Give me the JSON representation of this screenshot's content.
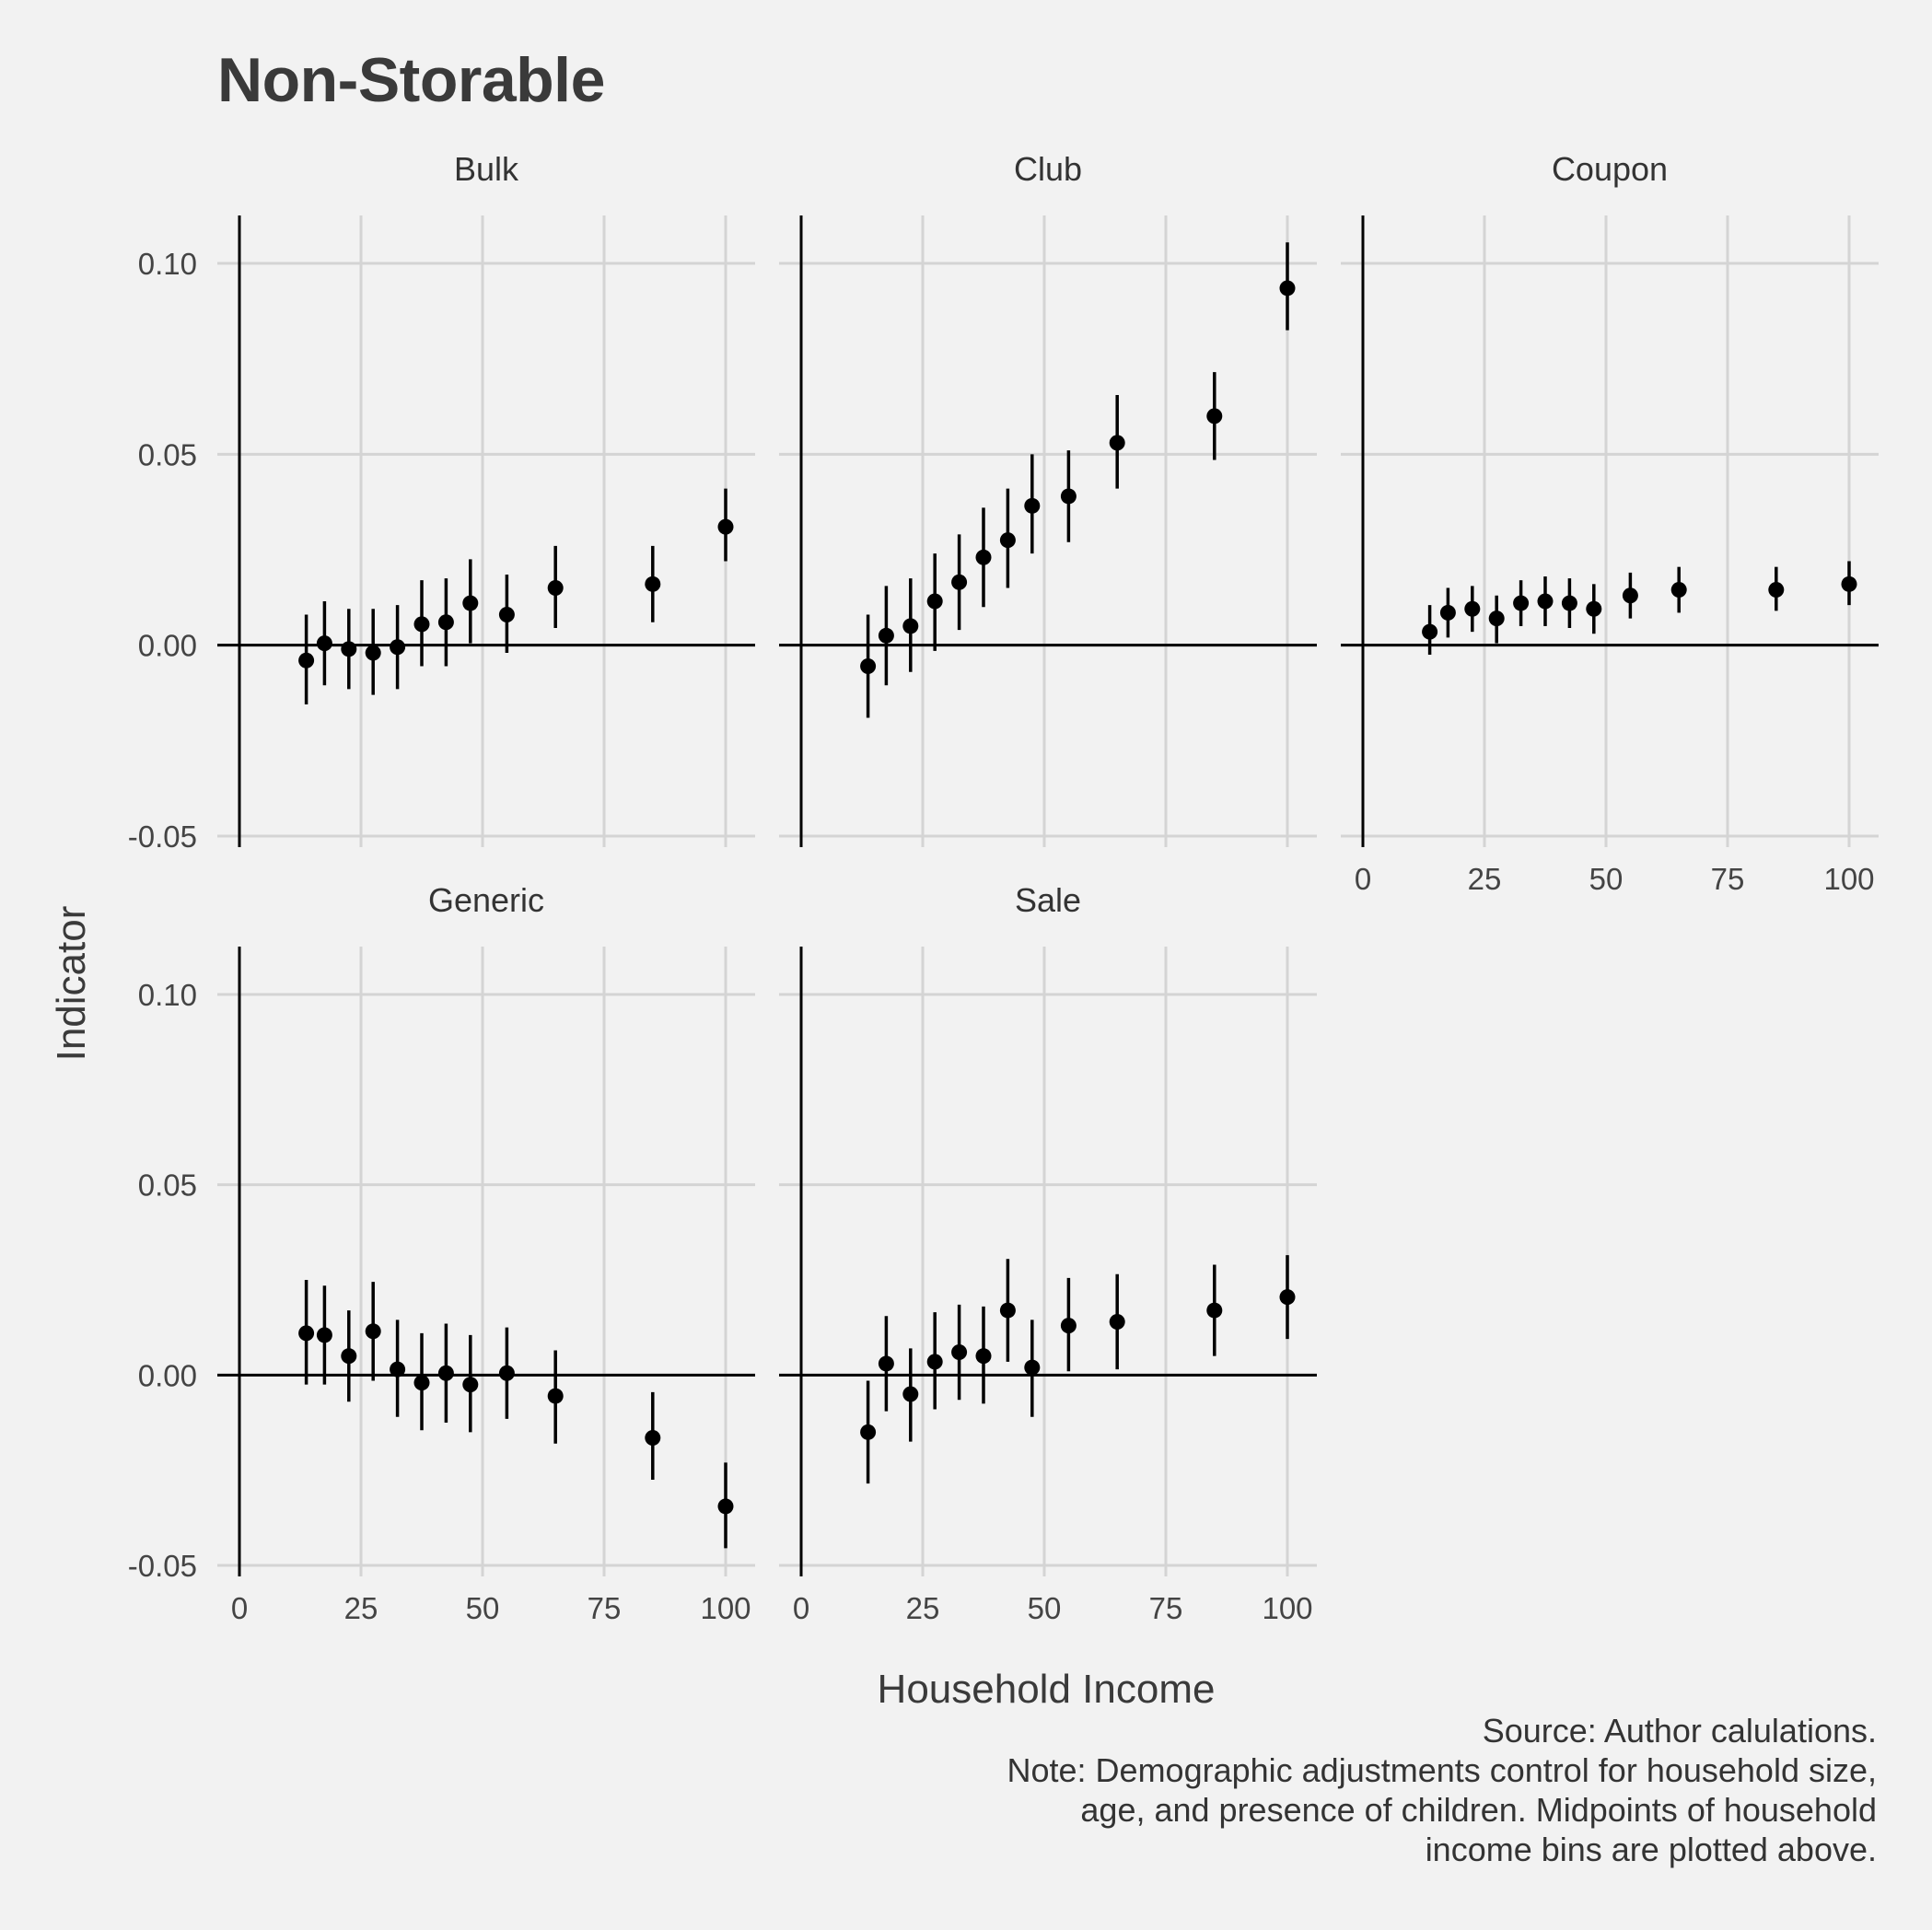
{
  "title": "Non-Storable",
  "xlabel": "Household Income",
  "ylabel": "Indicator",
  "caption": [
    "Source: Author calulations.",
    "Note: Demographic adjustments control for household size,",
    "age, and presence of children. Midpoints of household",
    "income bins are plotted above."
  ],
  "chart_data": {
    "type": "scatter",
    "subtype": "point-range facets",
    "title": "Non-Storable",
    "xlabel": "Household Income",
    "ylabel": "Indicator",
    "xlim": [
      0,
      100
    ],
    "ylim": [
      -0.05,
      0.11
    ],
    "x_ticks": [
      "0",
      "25",
      "50",
      "75",
      "100"
    ],
    "y_ticks": [
      "-0.05",
      "0.00",
      "0.05",
      "0.10"
    ],
    "grid": true,
    "x": [
      13.75,
      17.5,
      22.5,
      27.5,
      32.5,
      37.5,
      42.5,
      47.5,
      55,
      65,
      85,
      100
    ],
    "panels": [
      {
        "name": "Bulk",
        "y": [
          -0.004,
          0.0005,
          -0.001,
          -0.002,
          -0.0005,
          0.0055,
          0.006,
          0.011,
          0.008,
          0.015,
          0.016,
          0.031
        ],
        "low": [
          -0.0155,
          -0.0105,
          -0.0115,
          -0.013,
          -0.0115,
          -0.0055,
          -0.0055,
          0.0005,
          -0.002,
          0.0045,
          0.006,
          0.022
        ],
        "high": [
          0.008,
          0.0115,
          0.0095,
          0.0095,
          0.0105,
          0.017,
          0.0175,
          0.0225,
          0.0185,
          0.026,
          0.026,
          0.041
        ]
      },
      {
        "name": "Club",
        "y": [
          -0.0055,
          0.0025,
          0.005,
          0.0115,
          0.0165,
          0.023,
          0.0275,
          0.0365,
          0.039,
          0.053,
          0.06,
          0.0935
        ],
        "low": [
          -0.019,
          -0.0105,
          -0.007,
          -0.0015,
          0.004,
          0.01,
          0.015,
          0.024,
          0.027,
          0.041,
          0.0485,
          0.0825
        ],
        "high": [
          0.008,
          0.0155,
          0.0175,
          0.024,
          0.029,
          0.036,
          0.041,
          0.05,
          0.051,
          0.0655,
          0.0715,
          0.1055
        ]
      },
      {
        "name": "Coupon",
        "y": [
          0.0035,
          0.0085,
          0.0095,
          0.007,
          0.011,
          0.0115,
          0.011,
          0.0095,
          0.013,
          0.0145,
          0.0145,
          0.016
        ],
        "low": [
          -0.0025,
          0.002,
          0.0035,
          0.0005,
          0.005,
          0.005,
          0.0045,
          0.003,
          0.007,
          0.0085,
          0.009,
          0.0105
        ],
        "high": [
          0.0105,
          0.015,
          0.0155,
          0.013,
          0.017,
          0.018,
          0.0175,
          0.016,
          0.019,
          0.0205,
          0.0205,
          0.022
        ]
      },
      {
        "name": "Generic",
        "y": [
          0.011,
          0.0105,
          0.005,
          0.0115,
          0.0015,
          -0.002,
          0.0005,
          -0.0025,
          0.0005,
          -0.0055,
          -0.0165,
          -0.0345
        ],
        "low": [
          -0.0025,
          -0.0025,
          -0.007,
          -0.0015,
          -0.011,
          -0.0145,
          -0.0125,
          -0.015,
          -0.0115,
          -0.018,
          -0.0275,
          -0.0455
        ],
        "high": [
          0.025,
          0.0235,
          0.017,
          0.0245,
          0.0145,
          0.011,
          0.0135,
          0.0105,
          0.0125,
          0.0065,
          -0.0045,
          -0.023
        ]
      },
      {
        "name": "Sale",
        "y": [
          -0.015,
          0.003,
          -0.005,
          0.0035,
          0.006,
          0.005,
          0.017,
          0.002,
          0.013,
          0.014,
          0.017,
          0.0205
        ],
        "low": [
          -0.0285,
          -0.0095,
          -0.0175,
          -0.009,
          -0.0065,
          -0.0075,
          0.0035,
          -0.011,
          0.001,
          0.0015,
          0.005,
          0.0095
        ],
        "high": [
          -0.0015,
          0.0155,
          0.007,
          0.0165,
          0.0185,
          0.018,
          0.0305,
          0.0145,
          0.0255,
          0.0265,
          0.029,
          0.0315
        ]
      }
    ]
  }
}
